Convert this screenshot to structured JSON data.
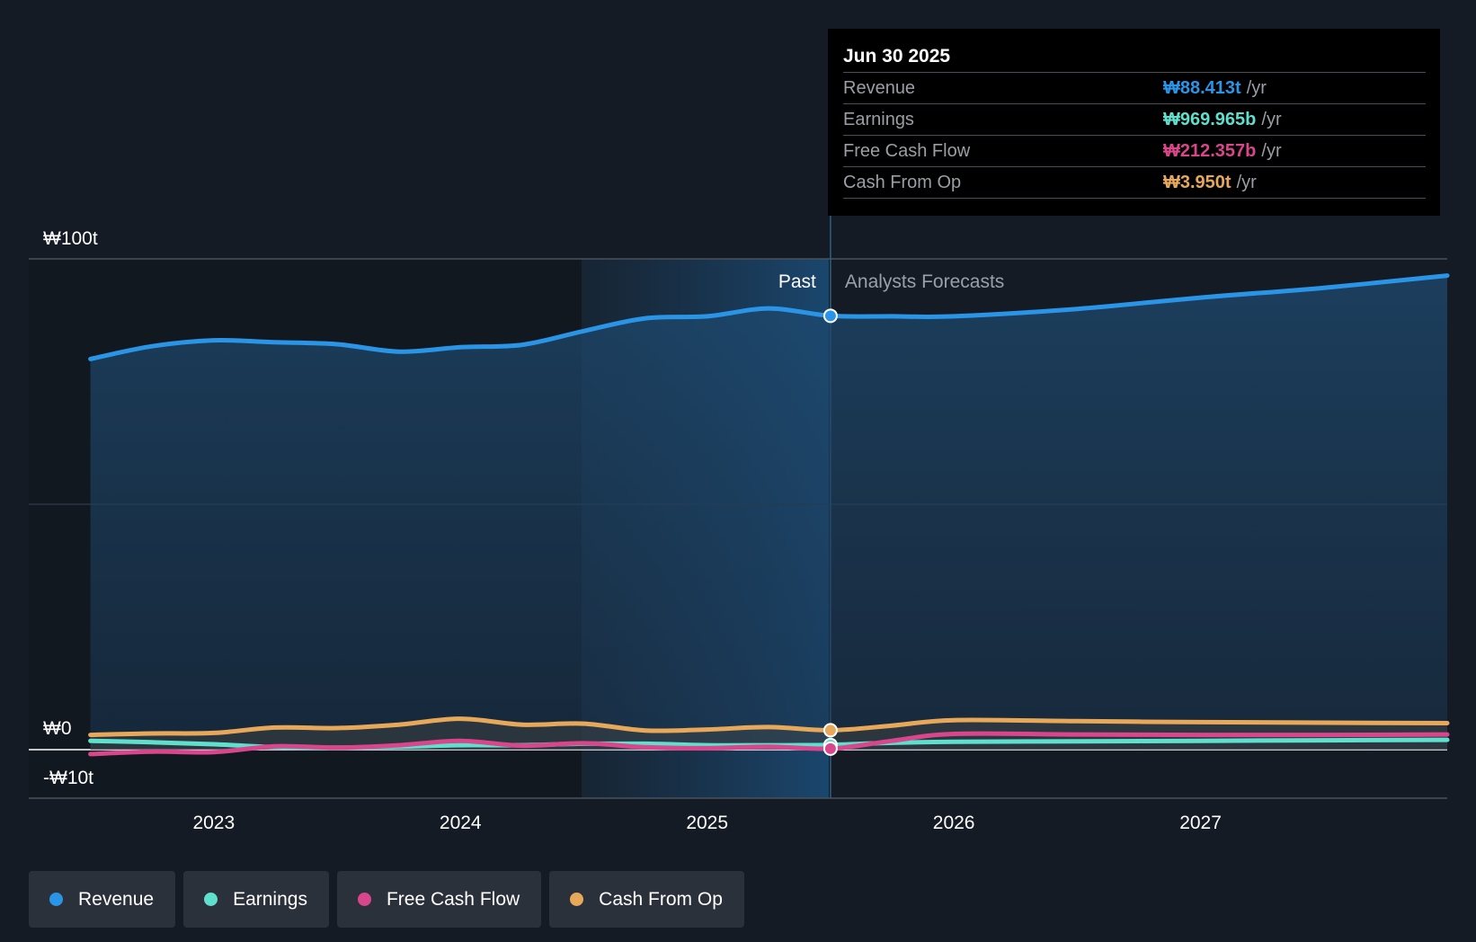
{
  "chart_data": {
    "type": "line",
    "x_ticks": [
      "2023",
      "2024",
      "2025",
      "2026",
      "2027"
    ],
    "y_axis_labels": [
      "₩100t",
      "₩0",
      "-₩10t"
    ],
    "ylim": [
      -10,
      100
    ],
    "x_range": [
      2022.25,
      2028.0
    ],
    "divider_x": 2025.5,
    "past_label": "Past",
    "forecast_label": "Analysts Forecasts",
    "series": [
      {
        "name": "Revenue",
        "color": "#2a95e6",
        "area": true,
        "points": [
          [
            2022.5,
            79.6
          ],
          [
            2022.75,
            82.2
          ],
          [
            2023.0,
            83.4
          ],
          [
            2023.25,
            83.0
          ],
          [
            2023.5,
            82.6
          ],
          [
            2023.75,
            81.1
          ],
          [
            2024.0,
            82.0
          ],
          [
            2024.25,
            82.5
          ],
          [
            2024.5,
            85.3
          ],
          [
            2024.75,
            87.9
          ],
          [
            2025.0,
            88.3
          ],
          [
            2025.25,
            89.9
          ],
          [
            2025.5,
            88.4
          ],
          [
            2025.75,
            88.3
          ],
          [
            2026.0,
            88.3
          ],
          [
            2026.5,
            89.8
          ],
          [
            2027.0,
            92.1
          ],
          [
            2027.5,
            94.1
          ],
          [
            2028.0,
            96.6
          ]
        ]
      },
      {
        "name": "Earnings",
        "color": "#5fdfcd",
        "area": false,
        "points": [
          [
            2022.5,
            1.8
          ],
          [
            2022.75,
            1.5
          ],
          [
            2023.0,
            1.1
          ],
          [
            2023.25,
            0.5
          ],
          [
            2023.5,
            0.4
          ],
          [
            2023.75,
            0.6
          ],
          [
            2024.0,
            0.9
          ],
          [
            2024.25,
            0.9
          ],
          [
            2024.5,
            1.2
          ],
          [
            2024.75,
            1.2
          ],
          [
            2025.0,
            0.9
          ],
          [
            2025.25,
            0.9
          ],
          [
            2025.5,
            0.97
          ],
          [
            2025.75,
            1.4
          ],
          [
            2026.0,
            1.6
          ],
          [
            2026.5,
            1.7
          ],
          [
            2027.0,
            1.8
          ],
          [
            2027.5,
            1.9
          ],
          [
            2028.0,
            2.0
          ]
        ]
      },
      {
        "name": "Free Cash Flow",
        "color": "#d9468c",
        "area": false,
        "points": [
          [
            2022.5,
            -0.9
          ],
          [
            2022.75,
            -0.4
          ],
          [
            2023.0,
            -0.5
          ],
          [
            2023.25,
            0.7
          ],
          [
            2023.5,
            0.4
          ],
          [
            2023.75,
            0.9
          ],
          [
            2024.0,
            1.8
          ],
          [
            2024.25,
            0.8
          ],
          [
            2024.5,
            1.3
          ],
          [
            2024.75,
            0.5
          ],
          [
            2025.0,
            0.3
          ],
          [
            2025.25,
            0.6
          ],
          [
            2025.5,
            0.21
          ],
          [
            2025.75,
            1.8
          ],
          [
            2026.0,
            3.2
          ],
          [
            2026.5,
            3.1
          ],
          [
            2027.0,
            3.0
          ],
          [
            2027.5,
            3.0
          ],
          [
            2028.0,
            3.1
          ]
        ]
      },
      {
        "name": "Cash From Op",
        "color": "#e8a85a",
        "area": true,
        "points": [
          [
            2022.5,
            3.0
          ],
          [
            2022.75,
            3.3
          ],
          [
            2023.0,
            3.4
          ],
          [
            2023.25,
            4.5
          ],
          [
            2023.5,
            4.4
          ],
          [
            2023.75,
            5.1
          ],
          [
            2024.0,
            6.3
          ],
          [
            2024.25,
            5.1
          ],
          [
            2024.5,
            5.3
          ],
          [
            2024.75,
            3.9
          ],
          [
            2025.0,
            4.1
          ],
          [
            2025.25,
            4.6
          ],
          [
            2025.5,
            3.95
          ],
          [
            2025.75,
            4.9
          ],
          [
            2026.0,
            6.0
          ],
          [
            2026.5,
            5.8
          ],
          [
            2027.0,
            5.6
          ],
          [
            2027.5,
            5.5
          ],
          [
            2028.0,
            5.4
          ]
        ]
      }
    ]
  },
  "tooltip": {
    "date": "Jun 30 2025",
    "rows": [
      {
        "label": "Revenue",
        "value": "₩88.413t",
        "unit": "/yr",
        "color": "#2a95e6"
      },
      {
        "label": "Earnings",
        "value": "₩969.965b",
        "unit": "/yr",
        "color": "#5fdfcd"
      },
      {
        "label": "Free Cash Flow",
        "value": "₩212.357b",
        "unit": "/yr",
        "color": "#d9468c"
      },
      {
        "label": "Cash From Op",
        "value": "₩3.950t",
        "unit": "/yr",
        "color": "#e8a85a"
      }
    ]
  },
  "legend": [
    {
      "label": "Revenue",
      "color": "#2a95e6"
    },
    {
      "label": "Earnings",
      "color": "#5fdfcd"
    },
    {
      "label": "Free Cash Flow",
      "color": "#d9468c"
    },
    {
      "label": "Cash From Op",
      "color": "#e8a85a"
    }
  ]
}
